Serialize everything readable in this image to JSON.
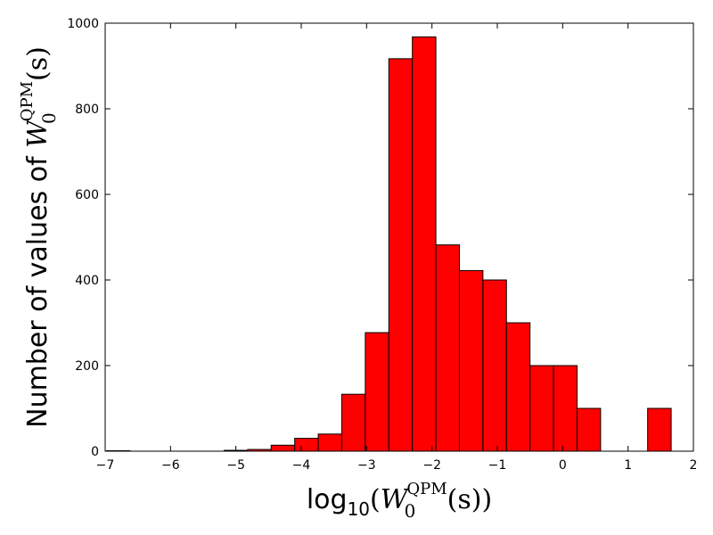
{
  "chart_data": {
    "type": "bar",
    "subtype": "histogram",
    "xlabel": {
      "prefix": "log",
      "sub": "10",
      "open": "(",
      "var": "W",
      "var_sub": "0",
      "var_sup": "QPM",
      "arg": "(s))"
    },
    "ylabel": {
      "text": "Number of values of ",
      "var": "W",
      "var_sub": "0",
      "var_sup": "QPM",
      "arg": "(s)"
    },
    "xlim": [
      -7,
      2
    ],
    "ylim": [
      0,
      1000
    ],
    "xticks": [
      {
        "v": -7,
        "label": "−7"
      },
      {
        "v": -6,
        "label": "−6"
      },
      {
        "v": -5,
        "label": "−5"
      },
      {
        "v": -4,
        "label": "−4"
      },
      {
        "v": -3,
        "label": "−3"
      },
      {
        "v": -2,
        "label": "−2"
      },
      {
        "v": -1,
        "label": "−1"
      },
      {
        "v": 0,
        "label": "0"
      },
      {
        "v": 1,
        "label": "1"
      },
      {
        "v": 2,
        "label": "2"
      }
    ],
    "yticks": [
      {
        "v": 0,
        "label": "0"
      },
      {
        "v": 200,
        "label": "200"
      },
      {
        "v": 400,
        "label": "400"
      },
      {
        "v": 600,
        "label": "600"
      },
      {
        "v": 800,
        "label": "800"
      },
      {
        "v": 1000,
        "label": "1000"
      }
    ],
    "bin_edges": [
      -6.98,
      -6.62,
      -6.26,
      -5.9,
      -5.54,
      -5.18,
      -4.82,
      -4.46,
      -4.1,
      -3.74,
      -3.38,
      -3.02,
      -2.66,
      -2.3,
      -1.94,
      -1.58,
      -1.22,
      -0.86,
      -0.5,
      -0.14,
      0.22,
      0.58,
      0.94,
      1.3,
      1.66
    ],
    "counts": [
      1,
      0,
      0,
      0,
      0,
      2,
      4,
      14,
      30,
      40,
      133,
      277,
      917,
      968,
      482,
      422,
      400,
      300,
      200,
      200,
      100,
      0,
      0,
      100
    ],
    "bar_color": "#ff0000",
    "edge_color": "#000000",
    "grid": false
  }
}
